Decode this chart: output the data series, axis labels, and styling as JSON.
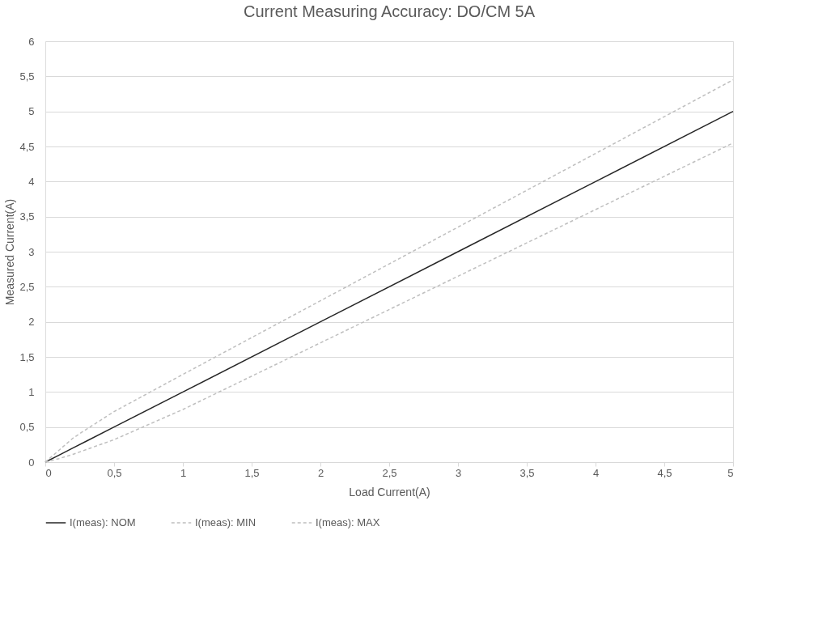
{
  "chart_data": {
    "type": "line",
    "title": "Current Measuring Accuracy: DO/CM 5A",
    "xlabel": "Load Current(A)",
    "ylabel": "Measured Current(A)",
    "x": [
      0,
      0.1,
      0.2,
      0.3,
      0.5,
      1,
      2,
      3,
      4,
      5
    ],
    "series": [
      {
        "name": "I(meas): NOM",
        "color": "#262626",
        "line_style": "solid",
        "values": [
          0,
          0.1,
          0.2,
          0.3,
          0.5,
          1,
          2,
          3,
          4,
          5
        ]
      },
      {
        "name": "I(meas): MIN",
        "color": "#bfbfbf",
        "line_style": "dashed",
        "values": [
          0,
          0.05,
          0.11,
          0.18,
          0.32,
          0.75,
          1.7,
          2.65,
          3.6,
          4.55
        ]
      },
      {
        "name": "I(meas): MAX",
        "color": "#bfbfbf",
        "line_style": "dashed",
        "values": [
          0,
          0.17,
          0.34,
          0.47,
          0.72,
          1.25,
          2.3,
          3.35,
          4.4,
          5.45
        ]
      }
    ],
    "xlim": [
      0,
      5
    ],
    "ylim": [
      0,
      6
    ],
    "xticks": [
      0,
      {
        "value": 0.5,
        "label": "0,5"
      },
      1,
      {
        "value": 1.5,
        "label": "1,5"
      },
      2,
      {
        "value": 2.5,
        "label": "2,5"
      },
      3,
      {
        "value": 3.5,
        "label": "3,5"
      },
      4,
      {
        "value": 4.5,
        "label": "4,5"
      },
      5
    ],
    "yticks": [
      0,
      {
        "value": 0.5,
        "label": "0,5"
      },
      1,
      {
        "value": 1.5,
        "label": "1,5"
      },
      2,
      {
        "value": 2.5,
        "label": "2,5"
      },
      3,
      {
        "value": 3.5,
        "label": "3,5"
      },
      4,
      {
        "value": 4.5,
        "label": "4,5"
      },
      5,
      {
        "value": 5.5,
        "label": "5,5"
      },
      6
    ],
    "grid": "y",
    "legend": "bottom",
    "marker": "none"
  }
}
